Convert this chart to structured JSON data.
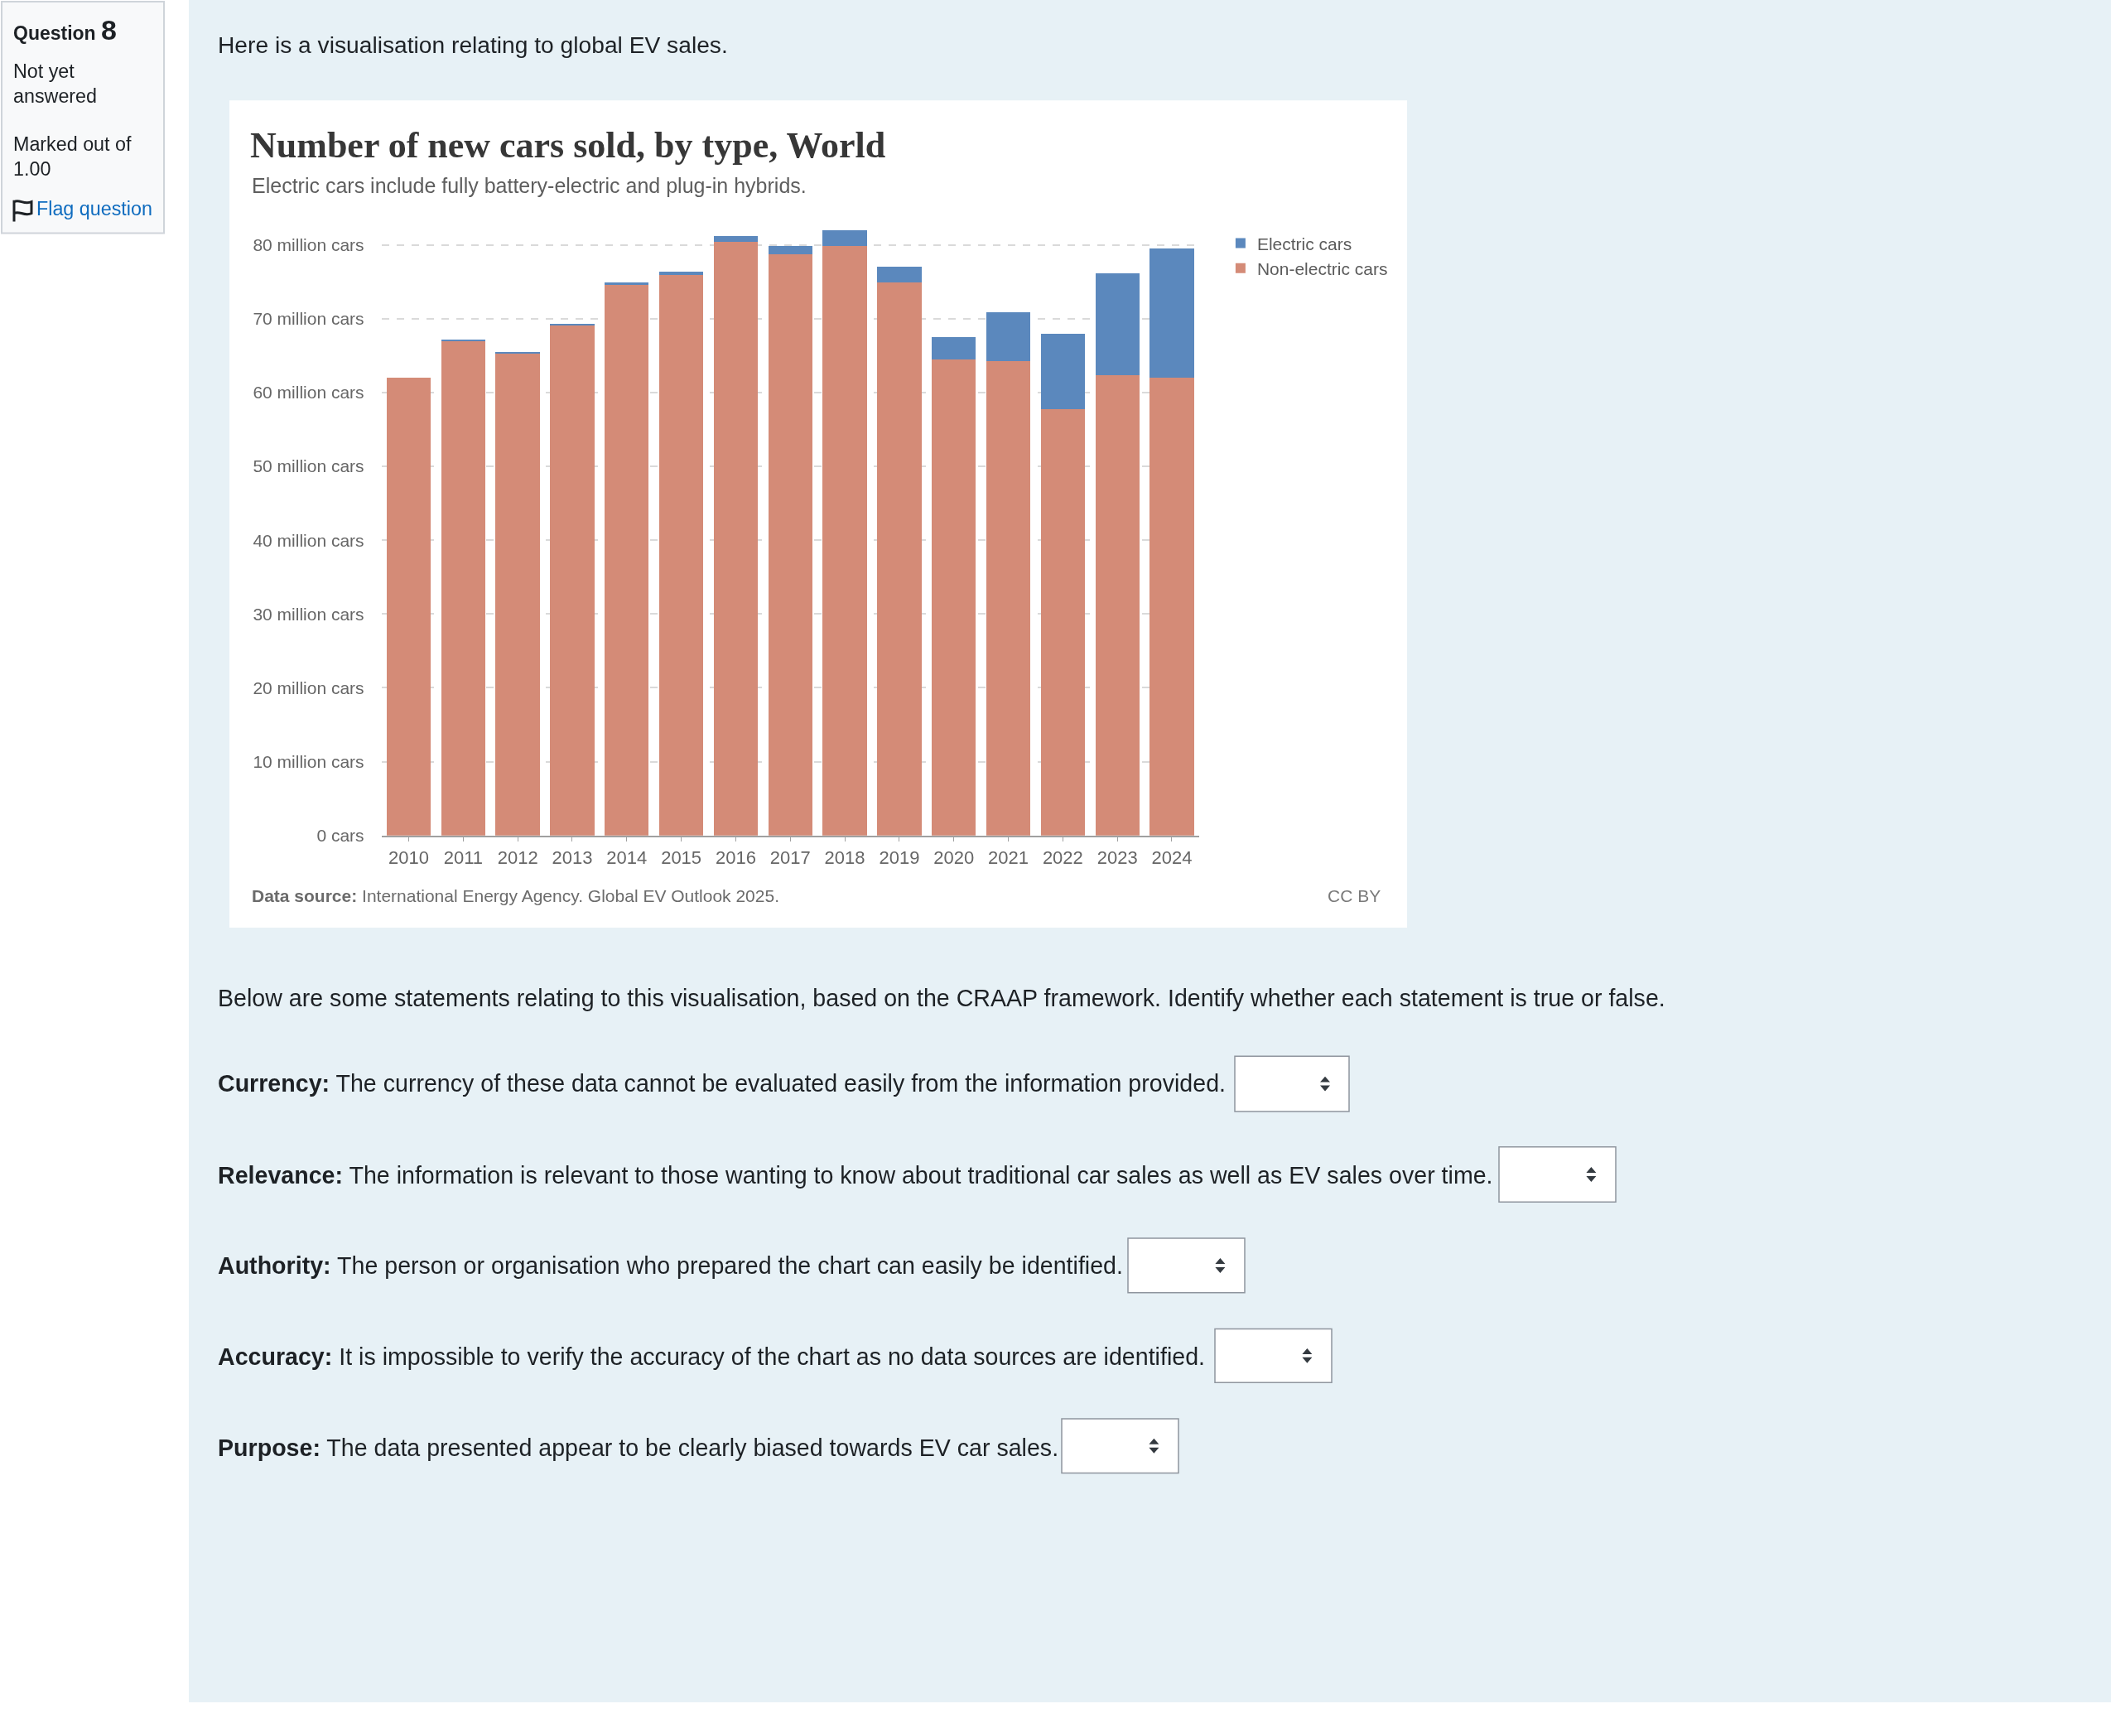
{
  "chart_data": {
    "type": "bar",
    "title": "Number of new cars sold, by type, World",
    "subtitle": "Electric cars include fully battery-electric and plug-in hybrids.",
    "categories": [
      "2010",
      "2011",
      "2012",
      "2013",
      "2014",
      "2015",
      "2016",
      "2017",
      "2018",
      "2019",
      "2020",
      "2021",
      "2022",
      "2023",
      "2024"
    ],
    "series": [
      {
        "name": "Non-electric cars",
        "color": "#d48b77",
        "values": [
          62.0,
          67.0,
          65.3,
          69.1,
          74.6,
          75.9,
          80.4,
          78.7,
          79.9,
          74.9,
          64.5,
          64.3,
          57.7,
          62.3,
          62.0
        ]
      },
      {
        "name": "Electric cars",
        "color": "#5b88bd",
        "values": [
          0,
          0.1,
          0.1,
          0.2,
          0.3,
          0.5,
          0.8,
          1.2,
          2.1,
          2.1,
          3.0,
          6.6,
          10.2,
          13.8,
          17.5
        ]
      }
    ],
    "stacked": true,
    "ylim": [
      0,
      82
    ],
    "yticks": [
      {
        "value": 0,
        "label": "0 cars"
      },
      {
        "value": 10,
        "label": "10 million cars"
      },
      {
        "value": 20,
        "label": "20 million cars"
      },
      {
        "value": 30,
        "label": "30 million cars"
      },
      {
        "value": 40,
        "label": "40 million cars"
      },
      {
        "value": 50,
        "label": "50 million cars"
      },
      {
        "value": 60,
        "label": "60 million cars"
      },
      {
        "value": 70,
        "label": "70 million cars"
      },
      {
        "value": 80,
        "label": "80 million cars"
      }
    ],
    "grid": "y",
    "legend": "top right",
    "annotations": [
      "Question 8",
      "Not yet answered",
      "Marked out of 1.00",
      "Flag question",
      "Here is a visualisation relating to global EV sales.",
      "Data source: International Energy Agency. Global EV Outlook 2025.",
      "CC BY",
      "Below are some statements relating to this visualisation, based on the CRAAP framework. Identify whether each statement is true or false.",
      "Currency: The currency of these data cannot be evaluated easily from the information provided.",
      "Relevance: The information is relevant to those wanting to know about traditional car sales as well as EV sales over time.",
      "Authority: The person or organisation who prepared the chart can easily be identified.",
      "Accuracy: It is impossible to verify the accuracy of the chart as no data sources are identified.",
      "Purpose: The data presented appear to be clearly biased towards EV car sales."
    ]
  }
}
